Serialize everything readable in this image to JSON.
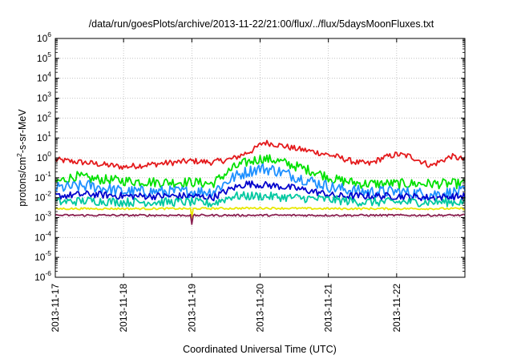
{
  "chart_data": {
    "type": "line",
    "title": "/data/run/goesPlots/archive/2013-11-22/21:00/flux/../flux/5daysMoonFluxes.txt",
    "xlabel": "Coordinated Universal Time (UTC)",
    "ylabel": {
      "pre": "protons/cm",
      "sup": "2",
      "post": "-s-sr-MeV"
    },
    "y_scale": "log",
    "ylim": [
      1e-06,
      1000000.0
    ],
    "xlim": [
      "2013-11-17",
      "2013-11-23"
    ],
    "grid": true,
    "legend": "none",
    "x_ticks": [
      "2013-11-17",
      "2013-11-18",
      "2013-11-19",
      "2013-11-20",
      "2013-11-21",
      "2013-11-22"
    ],
    "y_ticks": [
      {
        "base": "10",
        "exp": "6"
      },
      {
        "base": "10",
        "exp": "5"
      },
      {
        "base": "10",
        "exp": "4"
      },
      {
        "base": "10",
        "exp": "3"
      },
      {
        "base": "10",
        "exp": "2"
      },
      {
        "base": "10",
        "exp": "1"
      },
      {
        "base": "10",
        "exp": "0"
      },
      {
        "base": "10",
        "exp": "-1"
      },
      {
        "base": "10",
        "exp": "-2"
      },
      {
        "base": "10",
        "exp": "-3"
      },
      {
        "base": "10",
        "exp": "-4"
      },
      {
        "base": "10",
        "exp": "-5"
      },
      {
        "base": "10",
        "exp": "-6"
      }
    ],
    "series": [
      {
        "color": "#e41a1c",
        "noise": 0.15,
        "x": [
          0,
          0.5,
          1.0,
          1.5,
          2.0,
          2.3,
          2.6,
          2.9,
          3.05,
          3.2,
          3.5,
          3.8,
          4.1,
          4.4,
          4.6,
          4.8,
          5.0,
          5.2,
          5.5,
          5.8,
          6.0
        ],
        "y": [
          0.8,
          0.55,
          0.35,
          0.5,
          0.7,
          0.6,
          0.9,
          2.5,
          6.0,
          5.0,
          3.0,
          2.0,
          1.2,
          0.6,
          0.5,
          1.0,
          1.5,
          1.2,
          0.4,
          1.2,
          0.8
        ]
      },
      {
        "color": "#00e000",
        "noise": 0.25,
        "x": [
          0,
          0.3,
          0.5,
          1.0,
          1.5,
          2.0,
          2.3,
          2.6,
          2.8,
          3.0,
          3.2,
          3.5,
          3.8,
          4.1,
          4.5,
          5.0,
          5.5,
          6.0
        ],
        "y": [
          0.06,
          0.12,
          0.09,
          0.07,
          0.06,
          0.06,
          0.05,
          0.3,
          0.6,
          0.9,
          0.8,
          0.4,
          0.2,
          0.08,
          0.05,
          0.05,
          0.05,
          0.05
        ]
      },
      {
        "color": "#1e90ff",
        "noise": 0.3,
        "x": [
          0,
          0.5,
          1.0,
          1.5,
          2.0,
          2.3,
          2.6,
          2.8,
          3.0,
          3.2,
          3.5,
          3.8,
          4.1,
          4.5,
          5.0,
          5.5,
          6.0
        ],
        "y": [
          0.03,
          0.04,
          0.02,
          0.02,
          0.02,
          0.02,
          0.1,
          0.2,
          0.3,
          0.25,
          0.12,
          0.06,
          0.03,
          0.02,
          0.02,
          0.015,
          0.02
        ]
      },
      {
        "color": "#0000cd",
        "noise": 0.18,
        "x": [
          0,
          0.5,
          1.0,
          1.5,
          2.0,
          2.3,
          2.6,
          2.8,
          3.0,
          3.2,
          3.5,
          3.8,
          4.1,
          4.5,
          5.0,
          5.5,
          6.0
        ],
        "y": [
          0.012,
          0.015,
          0.012,
          0.012,
          0.012,
          0.01,
          0.03,
          0.05,
          0.045,
          0.04,
          0.03,
          0.02,
          0.012,
          0.012,
          0.012,
          0.01,
          0.012
        ]
      },
      {
        "color": "#00c8a0",
        "noise": 0.22,
        "x": [
          0,
          0.5,
          1.0,
          1.5,
          2.0,
          2.3,
          2.6,
          3.0,
          3.5,
          4.0,
          4.5,
          5.0,
          5.5,
          6.0
        ],
        "y": [
          0.006,
          0.007,
          0.006,
          0.006,
          0.006,
          0.005,
          0.012,
          0.012,
          0.01,
          0.008,
          0.006,
          0.006,
          0.006,
          0.006
        ]
      },
      {
        "color": "#e8e800",
        "noise": 0.05,
        "x": [
          0,
          1.0,
          2.0,
          3.0,
          4.0,
          5.0,
          6.0
        ],
        "y": [
          0.0028,
          0.0028,
          0.0028,
          0.003,
          0.0028,
          0.0028,
          0.0028
        ]
      },
      {
        "color": "#8b2252",
        "noise": 0.05,
        "x": [
          0,
          1.0,
          2.0,
          3.0,
          4.0,
          5.0,
          6.0
        ],
        "y": [
          0.0013,
          0.0013,
          0.0013,
          0.0013,
          0.0013,
          0.0013,
          0.0013
        ]
      }
    ]
  }
}
